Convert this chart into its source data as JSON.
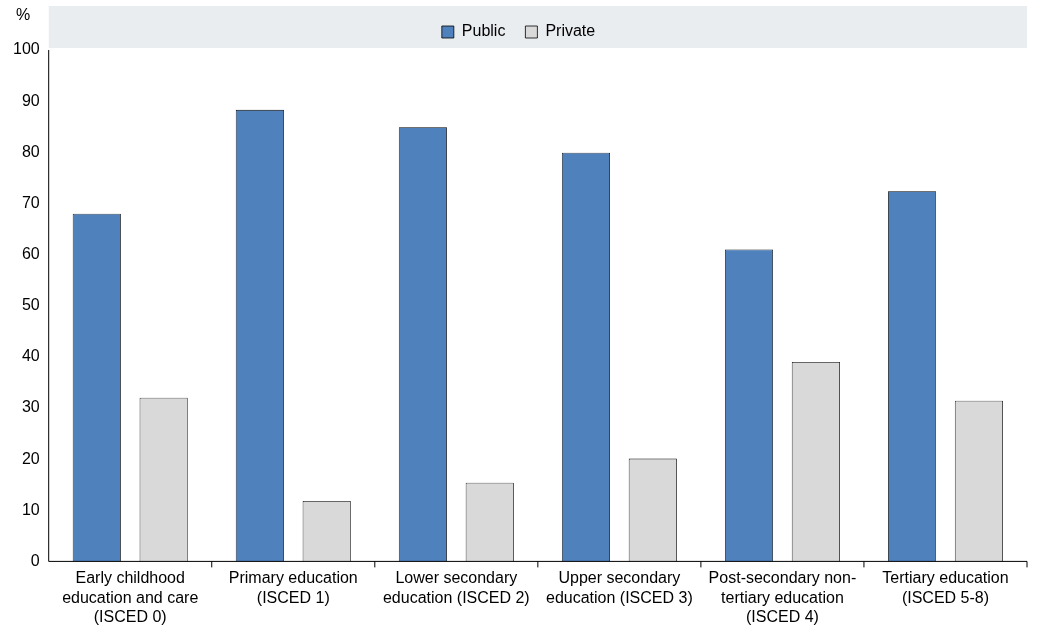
{
  "chart_data": {
    "type": "bar",
    "ylabel": "%",
    "categories": [
      "Early childhood education and care (ISCED 0)",
      "Primary education (ISCED 1)",
      "Lower secondary education (ISCED 2)",
      "Upper secondary education (ISCED 3)",
      "Post-secondary non-tertiary education (ISCED 4)",
      "Tertiary education (ISCED 5-8)"
    ],
    "series": [
      {
        "name": "Public",
        "color": "#4f81bd",
        "values": [
          68.0,
          88.3,
          84.9,
          79.9,
          61.0,
          72.4
        ]
      },
      {
        "name": "Private",
        "color": "#d9d9d9",
        "values": [
          32.0,
          11.8,
          15.4,
          20.1,
          39.0,
          31.4
        ]
      }
    ],
    "ylim": [
      0,
      100
    ],
    "yticks": [
      0,
      10,
      20,
      30,
      40,
      50,
      60,
      70,
      80,
      90,
      100
    ],
    "grid": false,
    "legend": "top"
  }
}
